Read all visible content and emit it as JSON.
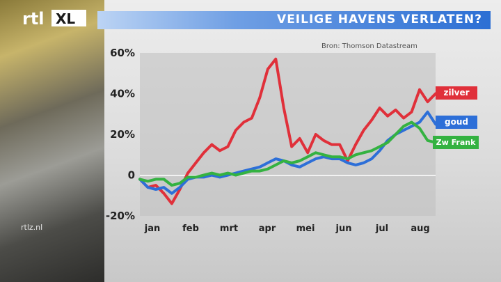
{
  "brand": "rtl XL",
  "watermark": "rtlz.nl",
  "banner_title": "VEILIGE HAVENS VERLATEN?",
  "source": "Bron: Thomson Datastream",
  "colors": {
    "zilver": "#e0303a",
    "goud": "#2d6fd8",
    "zw_frank": "#34b241",
    "banner": "#2c6fd4"
  },
  "chart_data": {
    "type": "line",
    "title": "VEILIGE HAVENS VERLATEN?",
    "xlabel": "",
    "ylabel": "",
    "ylim": [
      -20,
      60
    ],
    "yticks": [
      "60%",
      "40%",
      "20%",
      "0",
      "-20%"
    ],
    "months": [
      "jan",
      "feb",
      "mrt",
      "apr",
      "mei",
      "jun",
      "jul",
      "aug"
    ],
    "x": [
      "jan",
      "jan",
      "jan",
      "jan",
      "jan",
      "feb",
      "feb",
      "feb",
      "feb",
      "feb",
      "mrt",
      "mrt",
      "mrt",
      "mrt",
      "mrt",
      "apr",
      "apr",
      "apr",
      "apr",
      "apr",
      "mei",
      "mei",
      "mei",
      "mei",
      "mei",
      "jun",
      "jun",
      "jun",
      "jun",
      "jun",
      "jul",
      "jul",
      "jul",
      "jul",
      "jul",
      "aug",
      "aug",
      "aug"
    ],
    "series": [
      {
        "name": "zilver",
        "color": "#e0303a",
        "values": [
          -2,
          -6,
          -5,
          -9,
          -14,
          -7,
          1,
          6,
          11,
          15,
          12,
          14,
          22,
          26,
          28,
          38,
          52,
          57,
          33,
          14,
          18,
          11,
          20,
          17,
          15,
          15,
          7,
          15,
          22,
          27,
          33,
          29,
          32,
          28,
          31,
          42,
          36,
          40
        ]
      },
      {
        "name": "goud",
        "color": "#2d6fd8",
        "values": [
          -2,
          -6,
          -7,
          -6,
          -9,
          -6,
          -2,
          -1,
          -1,
          0,
          -1,
          0,
          1,
          2,
          3,
          4,
          6,
          8,
          7,
          5,
          4,
          6,
          8,
          9,
          8,
          8,
          6,
          5,
          6,
          8,
          12,
          17,
          20,
          22,
          24,
          26,
          31,
          25
        ]
      },
      {
        "name": "Zw Frank",
        "color": "#34b241",
        "values": [
          -2,
          -3,
          -2,
          -2,
          -5,
          -4,
          -1,
          -1,
          0,
          1,
          0,
          1,
          0,
          1,
          2,
          2,
          3,
          5,
          7,
          6,
          7,
          9,
          11,
          10,
          9,
          9,
          8,
          10,
          11,
          12,
          14,
          16,
          20,
          24,
          26,
          23,
          17,
          16
        ]
      }
    ]
  }
}
